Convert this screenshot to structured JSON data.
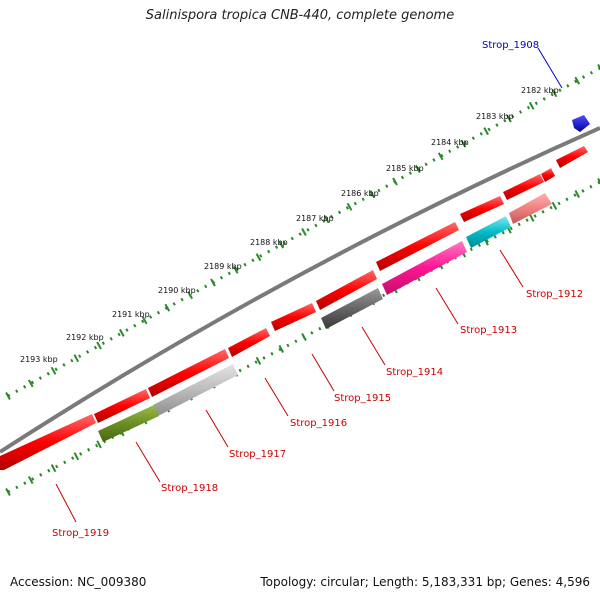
{
  "title": "Salinispora tropica CNB-440, complete genome",
  "footer": {
    "accession": "Accession: NC_009380",
    "summary": "Topology: circular; Length: 5,183,331 bp; Genes: 4,596"
  },
  "colors": {
    "backbone": "#7a7a7a",
    "tick": "#2a8a2a",
    "gene_default": "#ff0000",
    "label_red": "#cc0000",
    "label_blue": "#0000cc"
  },
  "kbp_labels": [
    "2182 kbp",
    "2183 kbp",
    "2184 kbp",
    "2185 kbp",
    "2186 kbp",
    "2187 kbp",
    "2188 kbp",
    "2189 kbp",
    "2190 kbp",
    "2191 kbp",
    "2192 kbp",
    "2193 kbp"
  ],
  "genes": [
    {
      "name": "Strop_1908",
      "color": "#0000cc",
      "strand": "blue"
    },
    {
      "name": "Strop_1912",
      "color": "#f08080",
      "strand": "inner"
    },
    {
      "name": "Strop_1913",
      "color": "#00bcc8",
      "strand": "inner",
      "pair": "#ff1493"
    },
    {
      "name": "Strop_1914",
      "color": "#666666",
      "strand": "inner"
    },
    {
      "name": "Strop_1915",
      "color": "#ff0000",
      "strand": "outer"
    },
    {
      "name": "Strop_1916",
      "color": "#ff0000",
      "strand": "outer"
    },
    {
      "name": "Strop_1917",
      "color": "#bbbbbb",
      "strand": "inner"
    },
    {
      "name": "Strop_1918",
      "color": "#6b8e23",
      "strand": "inner"
    },
    {
      "name": "Strop_1919",
      "color": "#ff0000",
      "strand": "outer"
    }
  ]
}
